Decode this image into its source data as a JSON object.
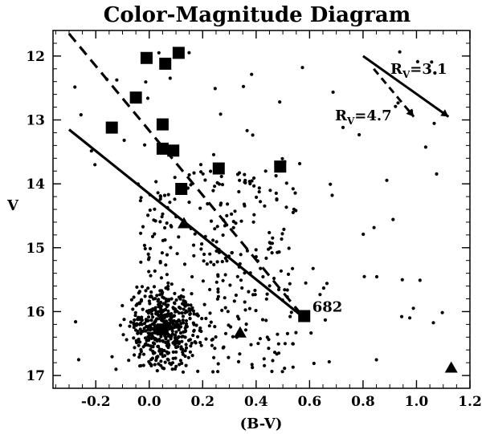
{
  "chart_data": {
    "type": "scatter",
    "title": "Color-Magnitude Diagram",
    "xlabel": "(B-V)",
    "ylabel": "V",
    "xlim": [
      -0.36,
      1.2
    ],
    "ylim": [
      17.2,
      11.6
    ],
    "y_inverted": true,
    "grid": false,
    "xticks": [
      -0.2,
      0.0,
      0.2,
      0.4,
      0.6,
      0.8,
      1.0,
      1.2
    ],
    "xtick_labels": [
      "-0.2",
      "0.0",
      "0.2",
      "0.4",
      "0.6",
      "0.8",
      "1.0",
      "1.2"
    ],
    "yticks": [
      12,
      13,
      14,
      15,
      16,
      17
    ],
    "ytick_labels": [
      "12",
      "13",
      "14",
      "15",
      "16",
      "17"
    ],
    "squares": [
      {
        "x": -0.01,
        "y": 12.03
      },
      {
        "x": 0.06,
        "y": 12.12
      },
      {
        "x": 0.11,
        "y": 11.95
      },
      {
        "x": -0.05,
        "y": 12.65
      },
      {
        "x": -0.14,
        "y": 13.12
      },
      {
        "x": 0.05,
        "y": 13.07
      },
      {
        "x": 0.09,
        "y": 13.48
      },
      {
        "x": 0.05,
        "y": 13.45
      },
      {
        "x": 0.26,
        "y": 13.76
      },
      {
        "x": 0.49,
        "y": 13.73
      },
      {
        "x": 0.12,
        "y": 14.08
      },
      {
        "x": 0.58,
        "y": 16.07
      },
      {
        "x": 0.05,
        "y": 16.28
      }
    ],
    "triangles": [
      {
        "x": 0.13,
        "y": 14.62
      },
      {
        "x": 0.34,
        "y": 16.33
      },
      {
        "x": 1.13,
        "y": 16.88
      }
    ],
    "field_stars": {
      "count": 850,
      "seed": 7
    },
    "lines": [
      {
        "style": "solid",
        "x": [
          -0.3,
          0.58
        ],
        "y": [
          13.15,
          16.1
        ]
      },
      {
        "style": "dashed",
        "x": [
          -0.3,
          0.58
        ],
        "y": [
          11.65,
          16.1
        ]
      }
    ],
    "reddening_vectors": [
      {
        "label_main": "R",
        "label_sub": "V",
        "label_value": "=3.1",
        "style": "solid",
        "x": [
          0.8,
          1.12
        ],
        "y": [
          12.0,
          12.95
        ]
      },
      {
        "label_main": "R",
        "label_sub": "V",
        "label_value": "=4.7",
        "style": "dashed",
        "x": [
          0.84,
          0.99
        ],
        "y": [
          12.2,
          12.95
        ]
      }
    ],
    "annotations": [
      {
        "text": "682",
        "x": 0.61,
        "y": 16.0
      }
    ]
  }
}
